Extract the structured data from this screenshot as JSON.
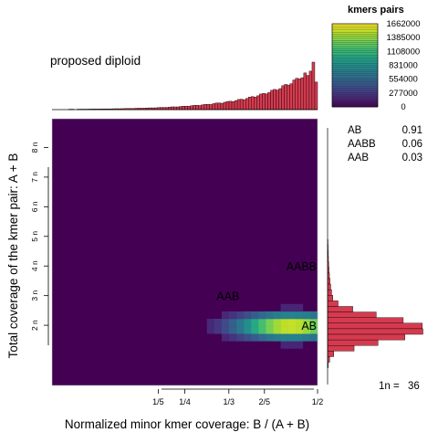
{
  "colors": {
    "background": "#ffffff",
    "histogram_bar": "#d63a4f",
    "histogram_edge": "#000000",
    "viridis": [
      "#440154",
      "#482878",
      "#3e4a89",
      "#31688e",
      "#26828e",
      "#1f9e89",
      "#35b779",
      "#6ece58",
      "#b5de2b",
      "#fde725"
    ]
  },
  "chart_data": [
    {
      "type": "heatmap",
      "title": "proposed diploid",
      "xlabel": "Normalized minor kmer coverage: B / (A + B)",
      "ylabel": "Total coverage of the kmer pair: A + B",
      "xlim": [
        0,
        0.5
      ],
      "ylim": [
        0,
        9
      ],
      "x_ticks": [
        {
          "value": 0.2,
          "label": "1/5"
        },
        {
          "value": 0.25,
          "label": "1/4"
        },
        {
          "value": 0.333,
          "label": "1/3"
        },
        {
          "value": 0.4,
          "label": "2/5"
        },
        {
          "value": 0.5,
          "label": "1/2"
        }
      ],
      "y_ticks": [
        {
          "value": 2,
          "label": "2 n"
        },
        {
          "value": 3,
          "label": "3 n"
        },
        {
          "value": 4,
          "label": "4 n"
        },
        {
          "value": 5,
          "label": "5 n"
        },
        {
          "value": 6,
          "label": "6 n"
        },
        {
          "value": 7,
          "label": "7 n"
        },
        {
          "value": 8,
          "label": "8 n"
        }
      ],
      "peak_labels": [
        {
          "text": "AB",
          "x": 0.5,
          "y": 2
        },
        {
          "text": "AAB",
          "x": 0.333,
          "y": 3
        },
        {
          "text": "AABB",
          "x": 0.5,
          "y": 4
        }
      ],
      "hotspot": {
        "x": 0.45,
        "y": 2.0,
        "max_count": 1662000
      },
      "side_annotation": {
        "label": "1n =",
        "value": "36"
      }
    },
    {
      "type": "legend-colorbar",
      "title": "kmers pairs",
      "ticks": [
        "1662000",
        "1385000",
        "1108000",
        "831000",
        "554000",
        "277000",
        "0"
      ],
      "range": [
        0,
        1662000
      ]
    },
    {
      "type": "table",
      "title": "",
      "rows": [
        {
          "genotype": "AB",
          "fraction": "0.91"
        },
        {
          "genotype": "AABB",
          "fraction": "0.06"
        },
        {
          "genotype": "AAB",
          "fraction": "0.03"
        }
      ]
    }
  ]
}
